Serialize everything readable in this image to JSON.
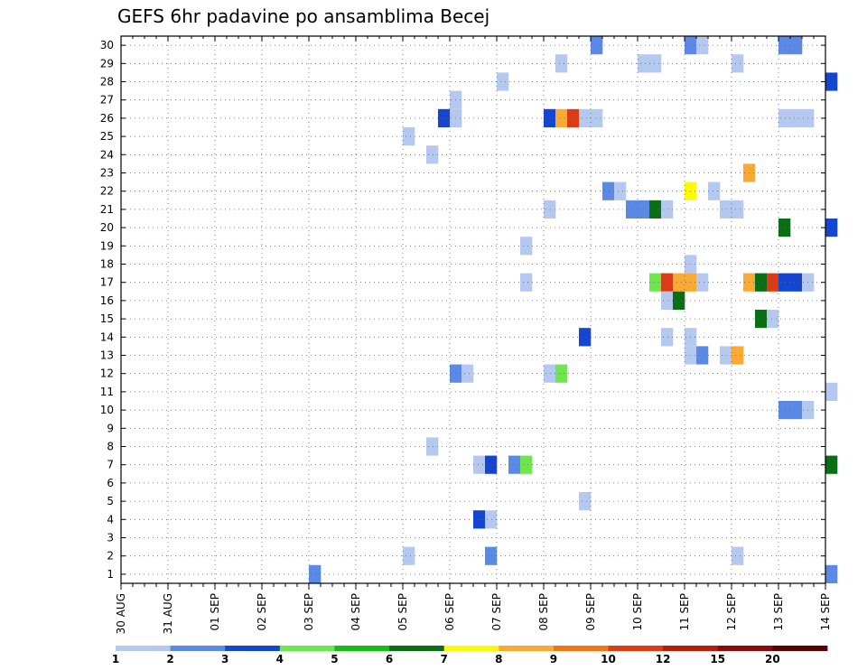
{
  "chart_data": {
    "type": "heatmap",
    "title": "GEFS 6hr padavine po ansamblima Becej",
    "xlabel": "",
    "ylabel": "",
    "x_tick_labels": [
      "30 AUG",
      "31 AUG",
      "01 SEP",
      "02 SEP",
      "03 SEP",
      "04 SEP",
      "05 SEP",
      "06 SEP",
      "07 SEP",
      "08 SEP",
      "09 SEP",
      "10 SEP",
      "11 SEP",
      "12 SEP",
      "13 SEP",
      "14 SEP"
    ],
    "x_unit": "day index from 30 AUG 00Z (step 0.25 = 6 h)",
    "xlim": [
      0,
      15
    ],
    "y_tick_labels": [
      "1",
      "2",
      "3",
      "4",
      "5",
      "6",
      "7",
      "8",
      "9",
      "10",
      "11",
      "12",
      "13",
      "14",
      "15",
      "16",
      "17",
      "18",
      "19",
      "20",
      "21",
      "22",
      "23",
      "24",
      "25",
      "26",
      "27",
      "28",
      "29",
      "30"
    ],
    "ylim": [
      0.5,
      30.5
    ],
    "grid": true,
    "colorbar": {
      "labels": [
        "1",
        "2",
        "3",
        "4",
        "5",
        "6",
        "7",
        "8",
        "9",
        "10",
        "12",
        "15",
        "20"
      ],
      "colors": [
        "#b4c8f0",
        "#5a8ae6",
        "#1446d2",
        "#6ee650",
        "#14be14",
        "#0a6e14",
        "#fafa0a",
        "#faaa32",
        "#f07814",
        "#dc3c14",
        "#b41e0a",
        "#8c0a0a",
        "#5a0000"
      ]
    },
    "cells": [
      [
        4.0,
        1,
        1
      ],
      [
        12.0,
        30,
        1
      ],
      [
        12.25,
        30,
        0
      ],
      [
        10.0,
        30,
        1
      ],
      [
        14.0,
        30,
        1
      ],
      [
        14.25,
        30,
        1
      ],
      [
        9.25,
        29,
        0
      ],
      [
        11.0,
        29,
        0
      ],
      [
        11.25,
        29,
        0
      ],
      [
        13.0,
        29,
        0
      ],
      [
        8.0,
        28,
        0
      ],
      [
        15.0,
        28,
        2
      ],
      [
        7.0,
        27,
        0
      ],
      [
        6.75,
        26,
        2
      ],
      [
        7.0,
        26,
        0
      ],
      [
        9.0,
        26,
        2
      ],
      [
        9.25,
        26,
        7
      ],
      [
        9.5,
        26,
        9
      ],
      [
        9.75,
        26,
        0
      ],
      [
        10.0,
        26,
        0
      ],
      [
        14.0,
        26,
        0
      ],
      [
        14.25,
        26,
        0
      ],
      [
        14.5,
        26,
        0
      ],
      [
        6.0,
        25,
        0
      ],
      [
        6.5,
        24,
        0
      ],
      [
        13.25,
        23,
        7
      ],
      [
        10.25,
        22,
        1
      ],
      [
        10.5,
        22,
        0
      ],
      [
        12.0,
        22,
        6
      ],
      [
        12.5,
        22,
        0
      ],
      [
        9.0,
        21,
        0
      ],
      [
        10.75,
        21,
        1
      ],
      [
        11.0,
        21,
        1
      ],
      [
        11.25,
        21,
        5
      ],
      [
        11.5,
        21,
        0
      ],
      [
        12.75,
        21,
        0
      ],
      [
        13.0,
        21,
        0
      ],
      [
        14.0,
        20,
        5
      ],
      [
        15.0,
        20,
        2
      ],
      [
        8.5,
        19,
        0
      ],
      [
        12.0,
        18,
        0
      ],
      [
        8.5,
        17,
        0
      ],
      [
        11.25,
        17,
        3
      ],
      [
        11.5,
        17,
        9
      ],
      [
        11.75,
        17,
        7
      ],
      [
        12.0,
        17,
        7
      ],
      [
        12.25,
        17,
        0
      ],
      [
        13.25,
        17,
        7
      ],
      [
        13.5,
        17,
        5
      ],
      [
        13.75,
        17,
        9
      ],
      [
        14.0,
        17,
        2
      ],
      [
        14.25,
        17,
        2
      ],
      [
        14.5,
        17,
        0
      ],
      [
        11.5,
        16,
        0
      ],
      [
        11.75,
        16,
        5
      ],
      [
        13.5,
        15,
        5
      ],
      [
        13.75,
        15,
        0
      ],
      [
        9.75,
        14,
        2
      ],
      [
        11.5,
        14,
        0
      ],
      [
        12.0,
        14,
        0
      ],
      [
        12.0,
        13,
        0
      ],
      [
        12.25,
        13,
        1
      ],
      [
        12.75,
        13,
        0
      ],
      [
        13.0,
        13,
        7
      ],
      [
        7.0,
        12,
        1
      ],
      [
        7.25,
        12,
        0
      ],
      [
        9.0,
        12,
        0
      ],
      [
        9.25,
        12,
        3
      ],
      [
        15.0,
        11,
        0
      ],
      [
        14.0,
        10,
        1
      ],
      [
        14.25,
        10,
        1
      ],
      [
        14.5,
        10,
        0
      ],
      [
        6.5,
        8,
        0
      ],
      [
        7.5,
        7,
        0
      ],
      [
        7.75,
        7,
        2
      ],
      [
        8.25,
        7,
        1
      ],
      [
        8.5,
        7,
        3
      ],
      [
        15.0,
        7,
        5
      ],
      [
        9.75,
        5,
        0
      ],
      [
        7.5,
        4,
        2
      ],
      [
        7.75,
        4,
        0
      ],
      [
        6.0,
        2,
        0
      ],
      [
        7.75,
        2,
        1
      ],
      [
        13.0,
        2,
        0
      ],
      [
        15.0,
        1,
        1
      ]
    ]
  }
}
